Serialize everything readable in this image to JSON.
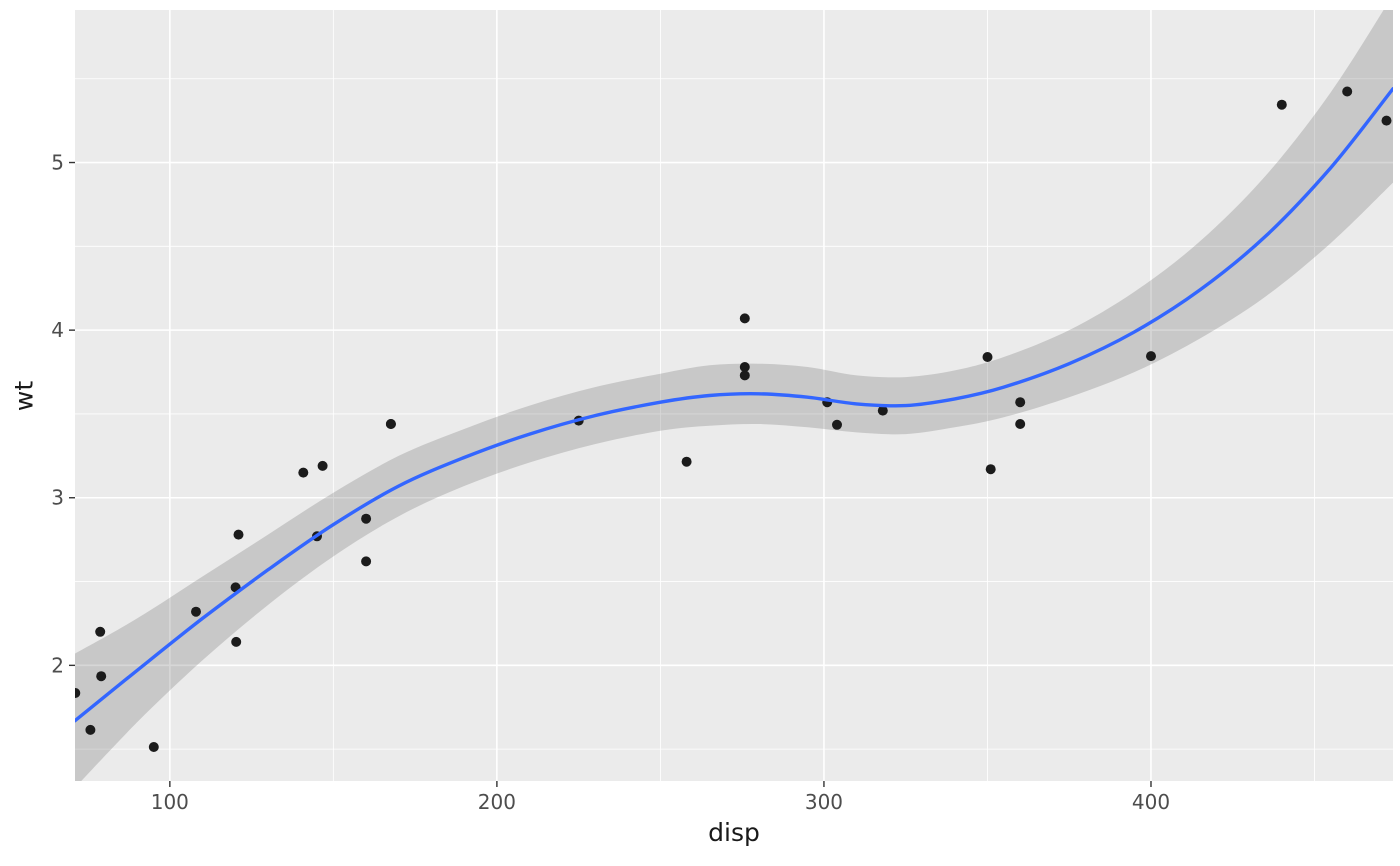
{
  "chart_data": {
    "type": "scatter",
    "title": "",
    "xlabel": "disp",
    "ylabel": "wt",
    "xlim": [
      71,
      474
    ],
    "ylim": [
      1.31,
      5.91
    ],
    "x_ticks": [
      100,
      200,
      300,
      400
    ],
    "y_ticks": [
      2,
      3,
      4,
      5
    ],
    "x_minor_ticks": [
      150,
      250,
      350,
      450
    ],
    "y_minor_ticks": [
      1.5,
      2.5,
      3.5,
      4.5,
      5.5
    ],
    "grid": true,
    "legend": false,
    "points": [
      [
        160,
        2.62
      ],
      [
        160,
        2.875
      ],
      [
        108,
        2.32
      ],
      [
        258,
        3.215
      ],
      [
        360,
        3.44
      ],
      [
        225,
        3.46
      ],
      [
        360,
        3.57
      ],
      [
        146.7,
        3.19
      ],
      [
        140.8,
        3.15
      ],
      [
        167.6,
        3.44
      ],
      [
        167.6,
        3.44
      ],
      [
        275.8,
        4.07
      ],
      [
        275.8,
        3.73
      ],
      [
        275.8,
        3.78
      ],
      [
        472,
        5.25
      ],
      [
        460,
        5.424
      ],
      [
        440,
        5.345
      ],
      [
        78.7,
        2.2
      ],
      [
        75.7,
        1.615
      ],
      [
        71.1,
        1.835
      ],
      [
        120.1,
        2.465
      ],
      [
        318,
        3.52
      ],
      [
        304,
        3.435
      ],
      [
        350,
        3.84
      ],
      [
        400,
        3.845
      ],
      [
        79,
        1.935
      ],
      [
        120.3,
        2.14
      ],
      [
        95.1,
        1.513
      ],
      [
        351,
        3.17
      ],
      [
        145,
        2.77
      ],
      [
        301,
        3.57
      ],
      [
        121,
        2.78
      ]
    ],
    "smooth": {
      "method": "loess",
      "x": [
        71,
        90,
        110,
        130,
        150,
        170,
        190,
        210,
        230,
        250,
        265,
        280,
        295,
        310,
        325,
        340,
        355,
        375,
        395,
        415,
        435,
        455,
        474
      ],
      "y": [
        1.67,
        1.97,
        2.28,
        2.57,
        2.84,
        3.07,
        3.24,
        3.38,
        3.49,
        3.57,
        3.61,
        3.62,
        3.6,
        3.56,
        3.55,
        3.59,
        3.66,
        3.8,
        3.99,
        4.24,
        4.56,
        4.97,
        5.44
      ],
      "lower": [
        1.27,
        1.66,
        2.03,
        2.36,
        2.65,
        2.89,
        3.07,
        3.21,
        3.32,
        3.4,
        3.43,
        3.44,
        3.42,
        3.39,
        3.38,
        3.42,
        3.48,
        3.6,
        3.75,
        3.95,
        4.2,
        4.52,
        4.88
      ],
      "upper": [
        2.07,
        2.28,
        2.53,
        2.78,
        3.03,
        3.25,
        3.41,
        3.55,
        3.66,
        3.74,
        3.79,
        3.8,
        3.78,
        3.73,
        3.72,
        3.76,
        3.84,
        4.0,
        4.23,
        4.53,
        4.92,
        5.42,
        6.0
      ]
    },
    "theme": {
      "background": "#FFFFFF",
      "panel_bg": "#EBEBEB",
      "grid_color": "#FFFFFF",
      "point_color": "#1B1B1B",
      "line_color": "#3366FF",
      "ribbon_color": "rgba(110,110,110,0.28)",
      "tick_color": "#333333",
      "tick_label_color": "#4D4D4D",
      "axis_title_color": "#1A1A1A"
    }
  }
}
